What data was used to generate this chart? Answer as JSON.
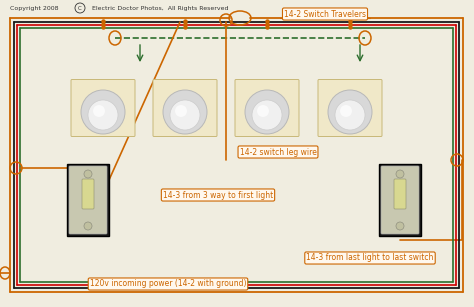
{
  "title": "Copyright 2008",
  "title2": "Electric Doctor Photos,  All Rights Reserved",
  "bg_color": "#f0ede0",
  "wire_colors": {
    "black": "#1a1a1a",
    "red": "#cc0000",
    "green": "#2d6e2d",
    "orange": "#cc6600",
    "white": "#e8e8e8"
  },
  "labels": {
    "travelers": "14-2 Switch Travelers",
    "switch_leg": "14-2 switch leg wire",
    "14_3_first": "14-3 from 3 way to first light",
    "14_3_last": "14-3 from last light to last switch",
    "power": "120v incoming power (14-2 with ground)"
  },
  "light_color": "#f0e8c8",
  "label_box_color": "#cc6600"
}
